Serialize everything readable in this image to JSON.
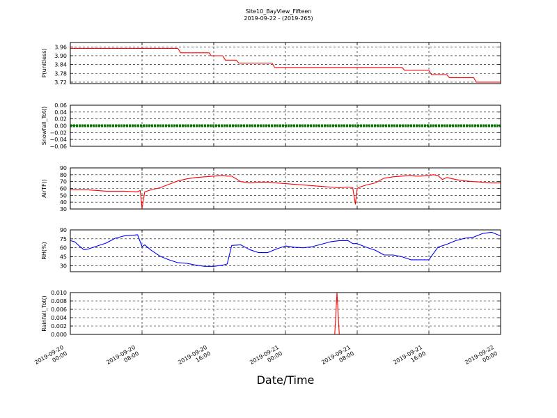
{
  "figure": {
    "title_line1": "Site10_BayView_Fifteen",
    "title_line2": "2019-09-22 - (2019-265)",
    "xlabel": "Date/Time",
    "x_range_hours": [
      0,
      48
    ],
    "x_ticks": [
      {
        "hour": 0,
        "line1": "2019-09-20",
        "line2": "00:00"
      },
      {
        "hour": 8,
        "line1": "2019-09-20",
        "line2": "08:00"
      },
      {
        "hour": 16,
        "line1": "2019-09-20",
        "line2": "16:00"
      },
      {
        "hour": 24,
        "line1": "2019-09-21",
        "line2": "00:00"
      },
      {
        "hour": 32,
        "line1": "2019-09-21",
        "line2": "08:00"
      },
      {
        "hour": 40,
        "line1": "2019-09-21",
        "line2": "16:00"
      },
      {
        "hour": 48,
        "line1": "2019-09-22",
        "line2": "00:00"
      }
    ]
  },
  "chart_data": [
    {
      "type": "line",
      "ylabel": "P(unitless)",
      "color": "#ff0000",
      "ylim": [
        3.71,
        3.99
      ],
      "yticks": [
        3.72,
        3.78,
        3.84,
        3.9,
        3.96
      ],
      "tick_labels": [
        "3.72",
        "3.78",
        "3.84",
        "3.90",
        "3.96"
      ],
      "grid": true,
      "x": [
        0,
        8,
        12,
        12.3,
        15.5,
        15.7,
        17,
        17.3,
        18.5,
        18.8,
        22.5,
        22.8,
        29,
        33,
        37,
        37.3,
        40,
        40.3,
        42,
        42.3,
        45,
        45.3,
        48
      ],
      "y": [
        3.95,
        3.95,
        3.95,
        3.92,
        3.92,
        3.9,
        3.9,
        3.87,
        3.87,
        3.85,
        3.85,
        3.82,
        3.82,
        3.82,
        3.82,
        3.8,
        3.8,
        3.77,
        3.77,
        3.75,
        3.75,
        3.72,
        3.72
      ]
    },
    {
      "type": "line",
      "ylabel": "Snowfall_Tot()",
      "color": "#007700",
      "ylim": [
        -0.06,
        0.06
      ],
      "yticks": [
        -0.06,
        -0.04,
        -0.02,
        0.0,
        0.02,
        0.04,
        0.06
      ],
      "tick_labels": [
        "−0.06",
        "−0.04",
        "−0.02",
        "0.00",
        "0.02",
        "0.04",
        "0.06"
      ],
      "grid": true,
      "x": [
        0,
        48
      ],
      "y": [
        0,
        0
      ]
    },
    {
      "type": "line",
      "ylabel": "AirTF()",
      "color": "#ff0000",
      "ylim": [
        30,
        90
      ],
      "yticks": [
        30,
        40,
        50,
        60,
        70,
        80,
        90
      ],
      "tick_labels": [
        "30",
        "40",
        "50",
        "60",
        "70",
        "80",
        "90"
      ],
      "grid": true,
      "x": [
        0,
        2,
        3,
        4,
        5,
        6,
        7.5,
        7.8,
        8,
        8.3,
        9,
        10,
        11,
        12,
        13,
        14,
        15,
        16,
        17,
        17.5,
        18,
        19,
        20,
        21,
        22,
        23,
        24,
        25,
        26,
        27,
        28,
        29,
        30,
        31,
        31.5,
        31.8,
        32,
        32.3,
        33,
        34,
        35,
        36,
        37,
        38,
        38.5,
        39,
        40,
        40.5,
        41,
        41.5,
        42,
        43,
        44,
        45,
        46,
        47,
        48
      ],
      "y": [
        58,
        58,
        57,
        56,
        56,
        56,
        55,
        57,
        31,
        55,
        58,
        61,
        66,
        71,
        74,
        76,
        77,
        78,
        79,
        78,
        78,
        70,
        68,
        69,
        69,
        68,
        67,
        66,
        65,
        64,
        63,
        62,
        61,
        62,
        61,
        37,
        60,
        62,
        65,
        68,
        75,
        77,
        78,
        79,
        78,
        78,
        79,
        80,
        79,
        73,
        76,
        73,
        71,
        70,
        69,
        68,
        68
      ]
    },
    {
      "type": "line",
      "ylabel": "RH(%)",
      "color": "#0000ff",
      "ylim": [
        20,
        90
      ],
      "yticks": [
        30,
        45,
        60,
        75,
        90
      ],
      "tick_labels": [
        "30",
        "45",
        "60",
        "75",
        "90"
      ],
      "grid": true,
      "x": [
        0,
        0.5,
        1,
        1.5,
        2,
        3,
        4,
        5,
        6,
        7,
        7.5,
        8,
        8.3,
        9,
        10,
        11,
        12,
        13,
        14,
        15,
        16,
        17,
        17.5,
        18,
        19,
        20,
        21,
        22,
        23,
        24,
        25,
        26,
        27,
        28,
        29,
        30,
        31,
        31.5,
        32,
        33,
        34,
        35,
        36,
        37,
        38,
        39,
        40,
        41,
        42,
        43,
        44,
        45,
        46,
        47,
        48
      ],
      "y": [
        72,
        70,
        63,
        57,
        58,
        63,
        68,
        76,
        80,
        81,
        82,
        62,
        65,
        56,
        46,
        40,
        35,
        34,
        31,
        29,
        29,
        31,
        33,
        64,
        65,
        57,
        52,
        52,
        58,
        63,
        61,
        60,
        62,
        66,
        70,
        72,
        72,
        67,
        67,
        61,
        56,
        48,
        48,
        45,
        40,
        40,
        40,
        61,
        66,
        72,
        76,
        78,
        84,
        86,
        80
      ]
    },
    {
      "type": "line",
      "ylabel": "Rainfall_Tot()",
      "color": "#ff0000",
      "ylim": [
        0,
        0.01
      ],
      "yticks": [
        0.0,
        0.002,
        0.004,
        0.006,
        0.008,
        0.01
      ],
      "tick_labels": [
        "0.000",
        "0.002",
        "0.004",
        "0.006",
        "0.008",
        "0.010"
      ],
      "grid": true,
      "x": [
        0,
        29.5,
        29.75,
        30.0,
        48
      ],
      "y": [
        0,
        0,
        0.01,
        0,
        0
      ]
    }
  ]
}
